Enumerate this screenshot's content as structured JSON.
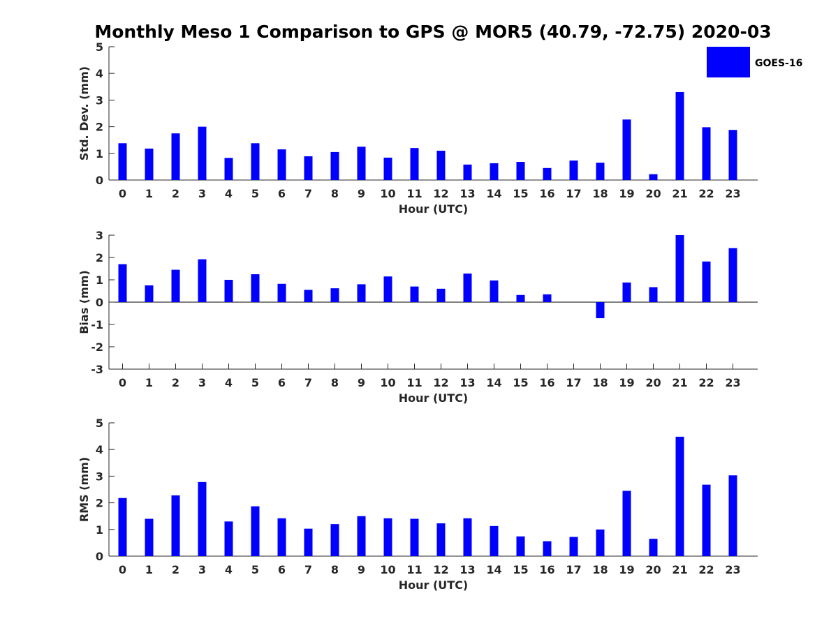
{
  "figure": {
    "title": "Monthly Meso 1 Comparison to GPS @ MOR5 (40.79, -72.75) 2020-03"
  },
  "colors": {
    "bar": "#0000ff",
    "axis": "#262626",
    "text": "#000000"
  },
  "legend": {
    "label": "GOES-16",
    "placement": "top-right"
  },
  "chart_data": [
    {
      "type": "bar",
      "series_name": "GOES-16",
      "title": "Monthly Meso 1 Comparison to GPS @ MOR5 (40.79, -72.75) 2020-03",
      "xlabel": "Hour (UTC)",
      "ylabel": "Std. Dev. (mm)",
      "ylim": [
        0,
        5
      ],
      "yticks": [
        0,
        1,
        2,
        3,
        4,
        5
      ],
      "categories": [
        "0",
        "1",
        "2",
        "3",
        "4",
        "5",
        "6",
        "7",
        "8",
        "9",
        "10",
        "11",
        "12",
        "13",
        "14",
        "15",
        "16",
        "17",
        "18",
        "19",
        "20",
        "21",
        "22",
        "23"
      ],
      "values": [
        1.38,
        1.18,
        1.75,
        2.0,
        0.83,
        1.38,
        1.15,
        0.89,
        1.05,
        1.25,
        0.84,
        1.2,
        1.1,
        0.58,
        0.63,
        0.68,
        0.45,
        0.73,
        0.65,
        2.27,
        0.22,
        3.3,
        1.98,
        1.88
      ]
    },
    {
      "type": "bar",
      "series_name": "GOES-16",
      "xlabel": "Hour (UTC)",
      "ylabel": "Bias (mm)",
      "ylim": [
        -3,
        3
      ],
      "yticks": [
        -3,
        -2,
        -1,
        0,
        1,
        2,
        3
      ],
      "categories": [
        "0",
        "1",
        "2",
        "3",
        "4",
        "5",
        "6",
        "7",
        "8",
        "9",
        "10",
        "11",
        "12",
        "13",
        "14",
        "15",
        "16",
        "17",
        "18",
        "19",
        "20",
        "21",
        "22",
        "23"
      ],
      "values": [
        1.7,
        0.75,
        1.45,
        1.92,
        1.0,
        1.25,
        0.82,
        0.55,
        0.62,
        0.8,
        1.15,
        0.7,
        0.6,
        1.28,
        0.97,
        0.32,
        0.35,
        0.0,
        -0.72,
        0.88,
        0.67,
        3.0,
        1.82,
        2.42
      ]
    },
    {
      "type": "bar",
      "series_name": "GOES-16",
      "xlabel": "Hour (UTC)",
      "ylabel": "RMS (mm)",
      "ylim": [
        0,
        5
      ],
      "yticks": [
        0,
        1,
        2,
        3,
        4,
        5
      ],
      "categories": [
        "0",
        "1",
        "2",
        "3",
        "4",
        "5",
        "6",
        "7",
        "8",
        "9",
        "10",
        "11",
        "12",
        "13",
        "14",
        "15",
        "16",
        "17",
        "18",
        "19",
        "20",
        "21",
        "22",
        "23"
      ],
      "values": [
        2.18,
        1.4,
        2.28,
        2.78,
        1.3,
        1.87,
        1.42,
        1.03,
        1.2,
        1.5,
        1.42,
        1.4,
        1.23,
        1.42,
        1.13,
        0.74,
        0.56,
        0.72,
        1.0,
        2.45,
        0.65,
        4.48,
        2.68,
        3.03
      ]
    }
  ]
}
